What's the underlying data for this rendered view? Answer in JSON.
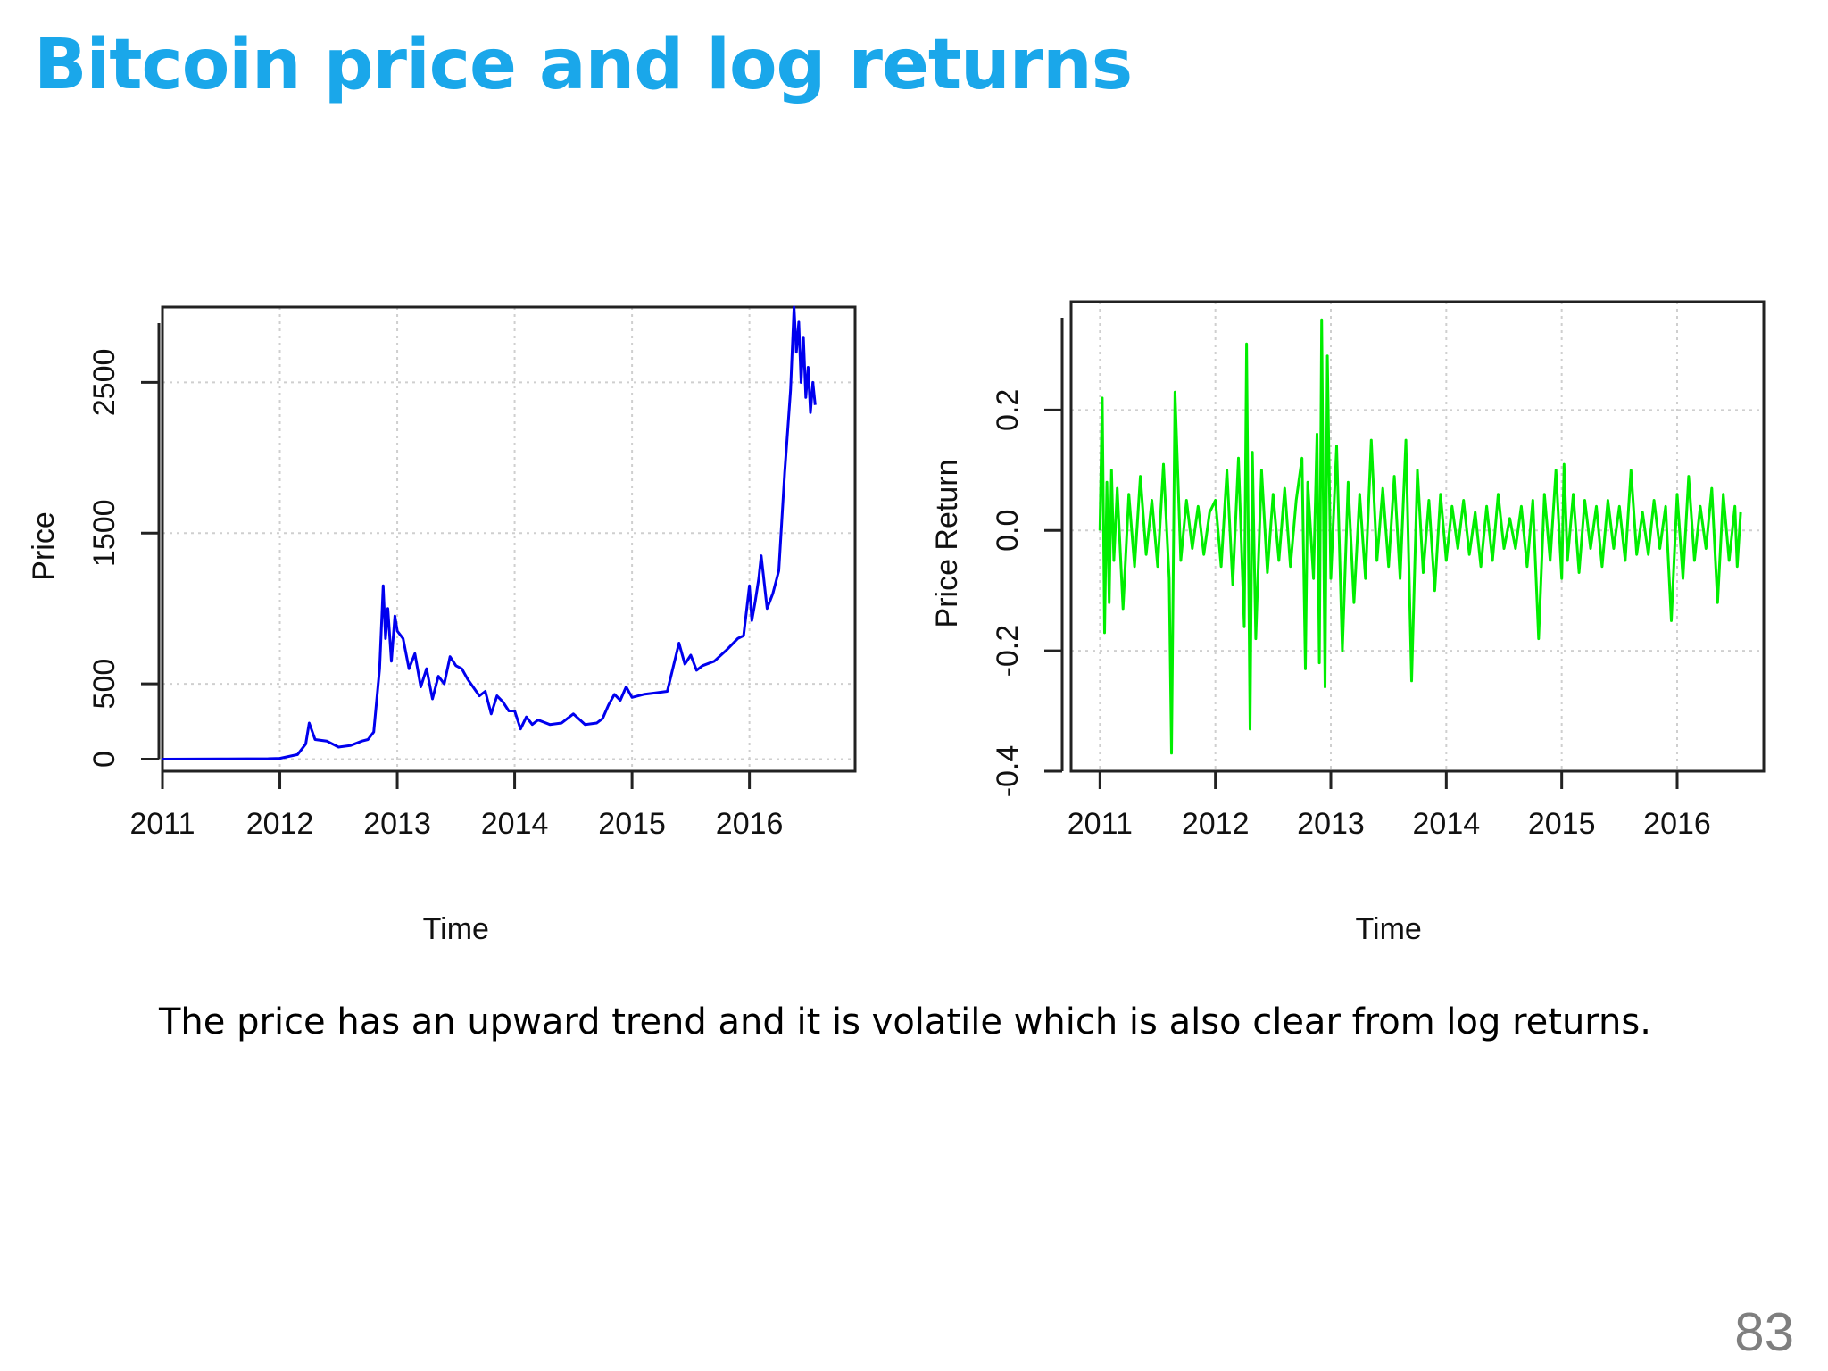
{
  "slide": {
    "title": "Bitcoin price and log returns",
    "caption": "The price has an upward trend and it is volatile which is also clear from log returns.",
    "page_number": "83",
    "title_color": "#1aa7ea"
  },
  "chart_data": [
    {
      "type": "line",
      "title": "",
      "xlabel": "Time",
      "ylabel": "Price",
      "color": "#0000ee",
      "grid": true,
      "xlim": [
        2011,
        2016.9
      ],
      "ylim": [
        -80,
        3000
      ],
      "xticks": [
        2011,
        2012,
        2013,
        2014,
        2015,
        2016
      ],
      "xtick_labels": [
        "2011",
        "2012",
        "2013",
        "2014",
        "2015",
        "2016"
      ],
      "yticks": [
        0,
        500,
        1500,
        2500
      ],
      "ytick_labels": [
        "0",
        "500",
        "1500",
        "2500"
      ],
      "x": [
        2011.0,
        2011.5,
        2011.9,
        2012.0,
        2012.15,
        2012.22,
        2012.25,
        2012.3,
        2012.4,
        2012.5,
        2012.6,
        2012.7,
        2012.75,
        2012.8,
        2012.85,
        2012.88,
        2012.9,
        2012.92,
        2012.95,
        2012.98,
        2013.0,
        2013.05,
        2013.1,
        2013.15,
        2013.2,
        2013.25,
        2013.3,
        2013.35,
        2013.4,
        2013.45,
        2013.5,
        2013.55,
        2013.6,
        2013.7,
        2013.75,
        2013.8,
        2013.85,
        2013.9,
        2013.95,
        2014.0,
        2014.05,
        2014.1,
        2014.15,
        2014.2,
        2014.3,
        2014.4,
        2014.5,
        2014.6,
        2014.7,
        2014.75,
        2014.8,
        2014.85,
        2014.9,
        2014.95,
        2015.0,
        2015.1,
        2015.2,
        2015.3,
        2015.4,
        2015.45,
        2015.5,
        2015.55,
        2015.6,
        2015.7,
        2015.8,
        2015.9,
        2015.95,
        2016.0,
        2016.02,
        2016.05,
        2016.08,
        2016.1,
        2016.15,
        2016.2,
        2016.25,
        2016.3,
        2016.35,
        2016.38,
        2016.4,
        2016.42,
        2016.44,
        2016.46,
        2016.48,
        2016.5,
        2016.52,
        2016.54,
        2016.56
      ],
      "y": [
        0,
        1,
        3,
        5,
        30,
        100,
        240,
        130,
        120,
        80,
        90,
        120,
        130,
        180,
        600,
        1150,
        800,
        1000,
        650,
        950,
        850,
        800,
        600,
        700,
        480,
        600,
        400,
        550,
        500,
        680,
        620,
        600,
        530,
        420,
        450,
        300,
        420,
        380,
        320,
        320,
        200,
        280,
        230,
        260,
        230,
        240,
        300,
        230,
        240,
        270,
        360,
        430,
        390,
        480,
        410,
        430,
        440,
        450,
        770,
        630,
        690,
        590,
        620,
        650,
        720,
        800,
        820,
        1150,
        920,
        1050,
        1200,
        1350,
        1000,
        1100,
        1250,
        1900,
        2450,
        3000,
        2700,
        2900,
        2500,
        2800,
        2400,
        2600,
        2300,
        2500,
        2350
      ]
    },
    {
      "type": "line",
      "title": "",
      "xlabel": "Time",
      "ylabel": "Price Return",
      "color": "#00ee00",
      "grid": true,
      "xlim": [
        2010.75,
        2016.75
      ],
      "ylim": [
        -0.4,
        0.38
      ],
      "xticks": [
        2011,
        2012,
        2013,
        2014,
        2015,
        2016
      ],
      "xtick_labels": [
        "2011",
        "2012",
        "2013",
        "2014",
        "2015",
        "2016"
      ],
      "yticks": [
        -0.4,
        -0.2,
        0.0,
        0.2
      ],
      "ytick_labels": [
        "-0.4",
        "-0.2",
        "0.0",
        "0.2"
      ],
      "x": [
        2011.0,
        2011.02,
        2011.04,
        2011.06,
        2011.08,
        2011.1,
        2011.12,
        2011.15,
        2011.2,
        2011.25,
        2011.3,
        2011.35,
        2011.4,
        2011.45,
        2011.5,
        2011.55,
        2011.6,
        2011.62,
        2011.65,
        2011.7,
        2011.75,
        2011.8,
        2011.85,
        2011.9,
        2011.95,
        2012.0,
        2012.05,
        2012.1,
        2012.15,
        2012.2,
        2012.25,
        2012.27,
        2012.3,
        2012.32,
        2012.35,
        2012.4,
        2012.45,
        2012.5,
        2012.55,
        2012.6,
        2012.65,
        2012.7,
        2012.75,
        2012.78,
        2012.8,
        2012.85,
        2012.88,
        2012.9,
        2012.92,
        2012.95,
        2012.97,
        2013.0,
        2013.05,
        2013.1,
        2013.15,
        2013.2,
        2013.25,
        2013.3,
        2013.35,
        2013.4,
        2013.45,
        2013.5,
        2013.55,
        2013.6,
        2013.65,
        2013.7,
        2013.75,
        2013.8,
        2013.85,
        2013.9,
        2013.95,
        2014.0,
        2014.05,
        2014.1,
        2014.15,
        2014.2,
        2014.25,
        2014.3,
        2014.35,
        2014.4,
        2014.45,
        2014.5,
        2014.55,
        2014.6,
        2014.65,
        2014.7,
        2014.75,
        2014.8,
        2014.85,
        2014.9,
        2014.95,
        2015.0,
        2015.02,
        2015.05,
        2015.1,
        2015.15,
        2015.2,
        2015.25,
        2015.3,
        2015.35,
        2015.4,
        2015.45,
        2015.5,
        2015.55,
        2015.6,
        2015.65,
        2015.7,
        2015.75,
        2015.8,
        2015.85,
        2015.9,
        2015.95,
        2016.0,
        2016.05,
        2016.1,
        2016.15,
        2016.2,
        2016.25,
        2016.3,
        2016.35,
        2016.4,
        2016.45,
        2016.5,
        2016.52,
        2016.55
      ],
      "y": [
        0.0,
        0.22,
        -0.17,
        0.08,
        -0.12,
        0.1,
        -0.05,
        0.07,
        -0.13,
        0.06,
        -0.06,
        0.09,
        -0.04,
        0.05,
        -0.06,
        0.11,
        -0.08,
        -0.37,
        0.23,
        -0.05,
        0.05,
        -0.03,
        0.04,
        -0.04,
        0.03,
        0.05,
        -0.06,
        0.1,
        -0.09,
        0.12,
        -0.16,
        0.31,
        -0.33,
        0.13,
        -0.18,
        0.1,
        -0.07,
        0.06,
        -0.05,
        0.07,
        -0.06,
        0.05,
        0.12,
        -0.23,
        0.08,
        -0.08,
        0.16,
        -0.22,
        0.35,
        -0.26,
        0.29,
        -0.08,
        0.14,
        -0.2,
        0.08,
        -0.12,
        0.06,
        -0.08,
        0.15,
        -0.05,
        0.07,
        -0.06,
        0.09,
        -0.08,
        0.15,
        -0.25,
        0.1,
        -0.07,
        0.05,
        -0.1,
        0.06,
        -0.05,
        0.04,
        -0.03,
        0.05,
        -0.04,
        0.03,
        -0.06,
        0.04,
        -0.05,
        0.06,
        -0.03,
        0.02,
        -0.03,
        0.04,
        -0.06,
        0.05,
        -0.18,
        0.06,
        -0.05,
        0.1,
        -0.08,
        0.11,
        -0.05,
        0.06,
        -0.07,
        0.05,
        -0.03,
        0.04,
        -0.06,
        0.05,
        -0.03,
        0.04,
        -0.05,
        0.1,
        -0.04,
        0.03,
        -0.04,
        0.05,
        -0.03,
        0.04,
        -0.15,
        0.06,
        -0.08,
        0.09,
        -0.05,
        0.04,
        -0.03,
        0.07,
        -0.12,
        0.06,
        -0.05,
        0.04,
        -0.06,
        0.03
      ]
    }
  ]
}
